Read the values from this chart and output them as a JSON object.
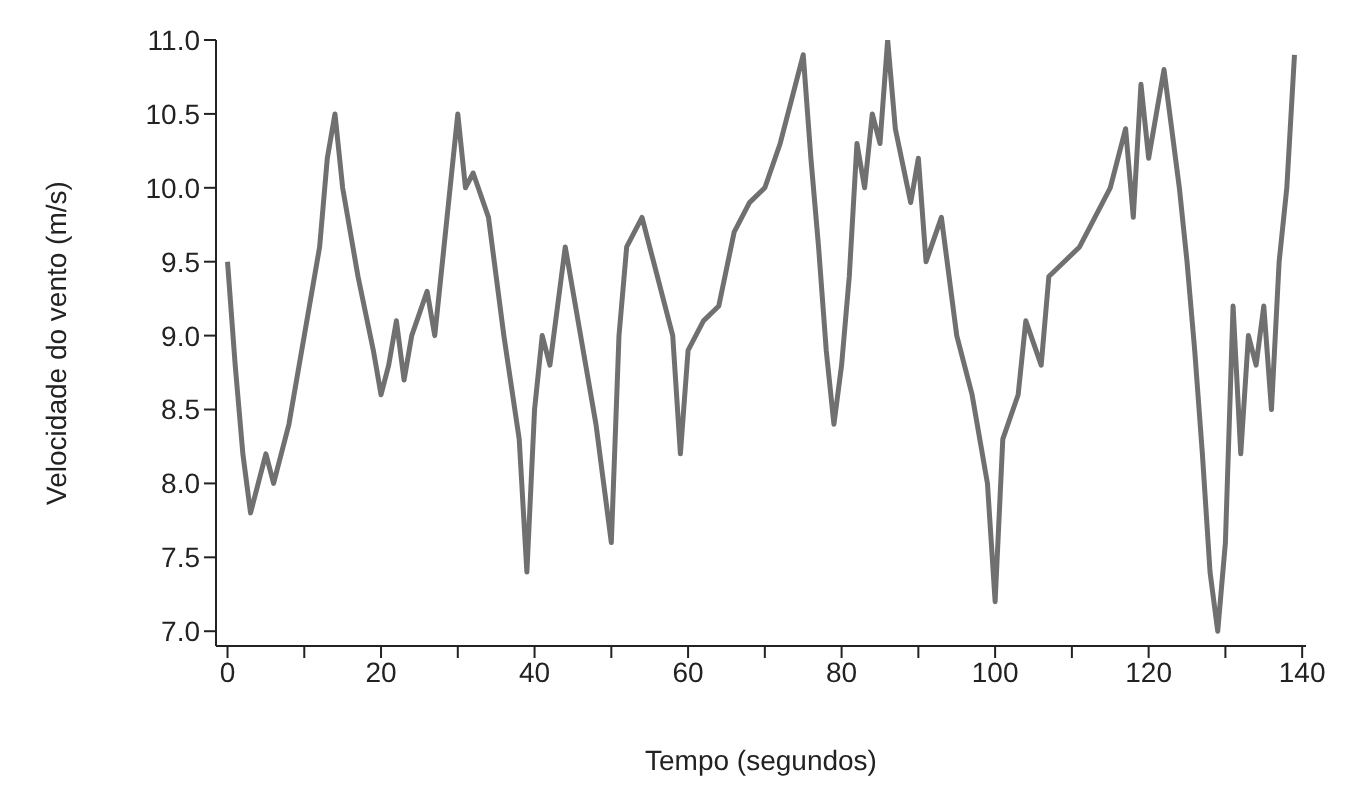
{
  "chart_data": {
    "type": "line",
    "xlabel": "Tempo (segundos)",
    "ylabel": "Velocidade do vento (m/s)",
    "x": [
      0,
      1,
      2,
      3,
      4,
      5,
      6,
      8,
      10,
      12,
      13,
      14,
      15,
      17,
      19,
      20,
      21,
      22,
      23,
      24,
      26,
      27,
      29,
      30,
      31,
      32,
      34,
      36,
      38,
      39,
      40,
      41,
      42,
      43,
      44,
      46,
      48,
      49,
      50,
      51,
      52,
      54,
      56,
      58,
      59,
      60,
      62,
      64,
      66,
      68,
      70,
      72,
      74,
      75,
      76,
      77,
      78,
      79,
      80,
      81,
      82,
      83,
      84,
      85,
      86,
      87,
      89,
      90,
      91,
      93,
      95,
      97,
      99,
      100,
      101,
      103,
      104,
      106,
      107,
      109,
      111,
      113,
      115,
      117,
      118,
      119,
      120,
      121,
      122,
      123,
      124,
      125,
      126,
      127,
      128,
      129,
      130,
      131,
      132,
      133,
      134,
      135,
      136,
      137,
      138,
      139
    ],
    "series": [
      {
        "color": "#707070",
        "values": [
          9.5,
          8.8,
          8.2,
          7.8,
          8.0,
          8.2,
          8.0,
          8.4,
          9.0,
          9.6,
          10.2,
          10.5,
          10.0,
          9.4,
          8.9,
          8.6,
          8.8,
          9.1,
          8.7,
          9.0,
          9.3,
          9.0,
          10.0,
          10.5,
          10.0,
          10.1,
          9.8,
          9.0,
          8.3,
          7.4,
          8.5,
          9.0,
          8.8,
          9.2,
          9.6,
          9.0,
          8.4,
          8.0,
          7.6,
          9.0,
          9.6,
          9.8,
          9.4,
          9.0,
          8.2,
          8.9,
          9.1,
          9.2,
          9.7,
          9.9,
          10.0,
          10.3,
          10.7,
          10.9,
          10.2,
          9.6,
          8.9,
          8.4,
          8.8,
          9.4,
          10.3,
          10.0,
          10.5,
          10.3,
          11.0,
          10.4,
          9.9,
          10.2,
          9.5,
          9.8,
          9.0,
          8.6,
          8.0,
          7.2,
          8.3,
          8.6,
          9.1,
          8.8,
          9.4,
          9.5,
          9.6,
          9.8,
          10.0,
          10.4,
          9.8,
          10.7,
          10.2,
          10.5,
          10.8,
          10.4,
          10.0,
          9.5,
          8.9,
          8.2,
          7.4,
          7.0,
          7.6,
          9.2,
          8.2,
          9.0,
          8.8,
          9.2,
          8.5,
          9.5,
          10.0,
          10.9
        ]
      }
    ],
    "xlim": [
      -1.5,
      140.5
    ],
    "ylim": [
      6.9,
      11.0
    ],
    "xticks": [
      0,
      {
        "value": 10,
        "label": null
      },
      20,
      {
        "value": 30,
        "label": null
      },
      40,
      {
        "value": 50,
        "label": null
      },
      60,
      {
        "value": 70,
        "label": null
      },
      80,
      {
        "value": 90,
        "label": null
      },
      100,
      {
        "value": 110,
        "label": null
      },
      120,
      {
        "value": 130,
        "label": null
      },
      140
    ],
    "yticks": [
      {
        "value": 7,
        "label": "7.0"
      },
      7.5,
      {
        "value": 8,
        "label": "8.0"
      },
      8.5,
      {
        "value": 9,
        "label": "9.0"
      },
      9.5,
      {
        "value": 10,
        "label": "10.0"
      },
      10.5,
      {
        "value": 11,
        "label": "11.0"
      }
    ],
    "grid": false,
    "legend": false,
    "marker": "none",
    "line_style": "solid"
  }
}
